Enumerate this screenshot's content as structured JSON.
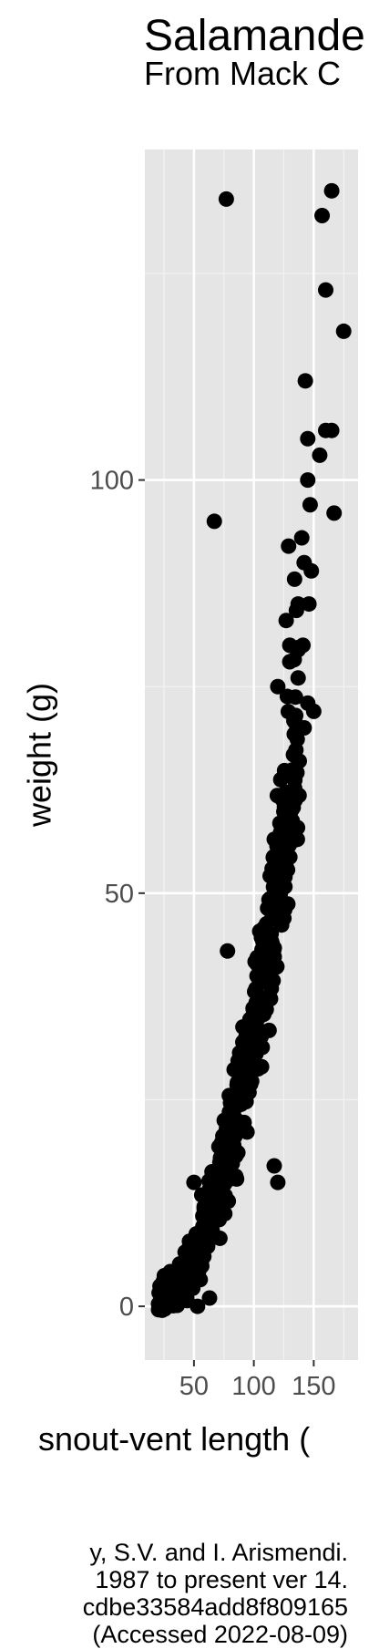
{
  "chart_data": {
    "type": "scatter",
    "title": "Salamande",
    "subtitle": "From Mack C",
    "xlabel": "snout-vent length (",
    "ylabel": "weight (g)",
    "xlim": [
      9,
      187
    ],
    "ylim": [
      -6.5,
      140
    ],
    "x_ticks": [
      50,
      100,
      150
    ],
    "y_ticks": [
      0,
      50,
      100
    ],
    "x_tick_labels": [
      "50",
      "100",
      "150"
    ],
    "y_tick_labels": [
      "0",
      "50",
      "100"
    ],
    "grid": true,
    "point_color": "#000000",
    "panel_background": "#e5e5e5",
    "outlier_points": [
      [
        77,
        134
      ],
      [
        165,
        135
      ],
      [
        157,
        132
      ],
      [
        160,
        123
      ],
      [
        175,
        118
      ],
      [
        143,
        112
      ],
      [
        145,
        105
      ],
      [
        160,
        106
      ],
      [
        165,
        106
      ],
      [
        155,
        103
      ],
      [
        145,
        100
      ],
      [
        147,
        97
      ],
      [
        167,
        96
      ],
      [
        67,
        95
      ],
      [
        129,
        92
      ],
      [
        140,
        93
      ],
      [
        142,
        90
      ],
      [
        148,
        89
      ],
      [
        134,
        88
      ],
      [
        137,
        85
      ],
      [
        127,
        83
      ],
      [
        146,
        85
      ],
      [
        130,
        80
      ],
      [
        141,
        80
      ],
      [
        120,
        75
      ],
      [
        130,
        78
      ],
      [
        145,
        73
      ],
      [
        150,
        72
      ],
      [
        142,
        70
      ],
      [
        78,
        43
      ],
      [
        117,
        17
      ],
      [
        120,
        15
      ],
      [
        50,
        15
      ],
      [
        63,
        1
      ],
      [
        37,
        1
      ],
      [
        28,
        0
      ],
      [
        32,
        2
      ],
      [
        44,
        1
      ],
      [
        53,
        0
      ]
    ],
    "trend": {
      "x": [
        20,
        40,
        60,
        80,
        100,
        120,
        140
      ],
      "y": [
        0.5,
        3,
        9,
        19,
        33,
        52,
        72
      ]
    },
    "cluster_point_count": 460
  },
  "caption_lines": [
    "y, S.V. and I. Arismendi.",
    "1987 to present ver 14.",
    "cdbe33584add8f809165",
    "(Accessed 2022-08-09)"
  ]
}
